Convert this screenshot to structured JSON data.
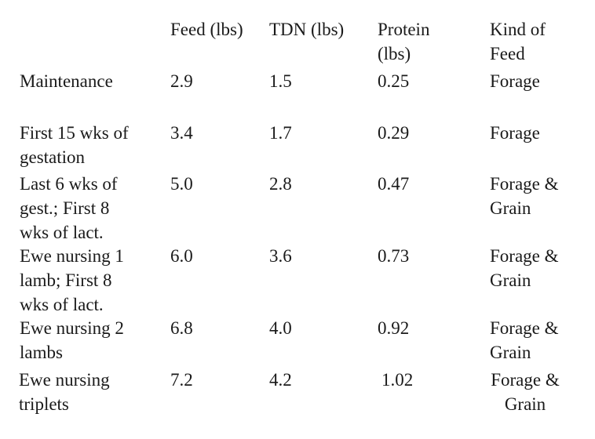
{
  "table": {
    "headers": {
      "feed": "Feed (lbs)",
      "tdn": "TDN (lbs)",
      "protein": "Protein\n(lbs)",
      "kind": "Kind of\nFeed"
    },
    "rows": [
      {
        "stage": "Maintenance",
        "feed": "2.9",
        "tdn": "1.5",
        "protein": "0.25",
        "kind": "Forage"
      },
      {
        "stage": "First 15 wks of\ngestation",
        "feed": "3.4",
        "tdn": "1.7",
        "protein": "0.29",
        "kind": "Forage"
      },
      {
        "stage": "Last 6 wks of\ngest.; First 8\nwks of lact.",
        "feed": "5.0",
        "tdn": "2.8",
        "protein": "0.47",
        "kind": "Forage &\nGrain"
      },
      {
        "stage": "Ewe nursing 1\nlamb; First 8\nwks of lact.",
        "feed": "6.0",
        "tdn": "3.6",
        "protein": "0.73",
        "kind": "Forage &\nGrain"
      },
      {
        "stage": "Ewe nursing 2\nlambs",
        "feed": "6.8",
        "tdn": "4.0",
        "protein": "0.92",
        "kind": "Forage &\nGrain"
      },
      {
        "stage": "Ewe nursing\n triplets",
        "feed": "7.2",
        "tdn": "4.2",
        "protein": "1.02",
        "kind": "Forage &\nGrain"
      }
    ]
  }
}
